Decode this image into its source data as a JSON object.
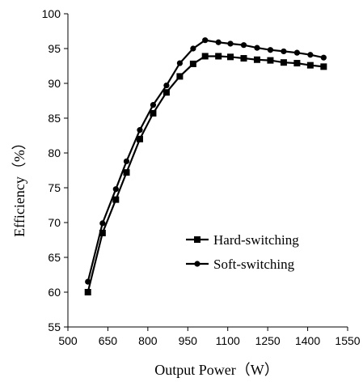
{
  "chart_data": {
    "type": "line",
    "xlabel": "Output Power（W）",
    "ylabel": "Efficiency（%）",
    "xlim": [
      500,
      1550
    ],
    "ylim": [
      55,
      100
    ],
    "x_ticks": [
      500,
      650,
      800,
      950,
      1100,
      1250,
      1400,
      1550
    ],
    "y_ticks": [
      55,
      60,
      65,
      70,
      75,
      80,
      85,
      90,
      95,
      100
    ],
    "grid": false,
    "legend_position": "lower-right",
    "series": [
      {
        "name": "Hard-switching",
        "marker": "square",
        "color": "#000000",
        "x": [
          575,
          630,
          680,
          720,
          770,
          820,
          870,
          920,
          970,
          1015,
          1065,
          1110,
          1160,
          1210,
          1260,
          1310,
          1360,
          1410,
          1460
        ],
        "y": [
          60.0,
          68.5,
          73.3,
          77.2,
          82.0,
          85.7,
          88.7,
          91.0,
          92.8,
          93.9,
          93.9,
          93.8,
          93.6,
          93.4,
          93.3,
          93.0,
          92.9,
          92.6,
          92.4
        ]
      },
      {
        "name": "Soft-switching",
        "marker": "circle",
        "color": "#000000",
        "x": [
          575,
          630,
          680,
          720,
          770,
          820,
          870,
          920,
          970,
          1015,
          1065,
          1110,
          1160,
          1210,
          1260,
          1310,
          1360,
          1410,
          1460
        ],
        "y": [
          61.5,
          69.9,
          74.8,
          78.8,
          83.3,
          86.9,
          89.7,
          92.9,
          95.0,
          96.2,
          95.9,
          95.7,
          95.5,
          95.1,
          94.8,
          94.6,
          94.4,
          94.1,
          93.7
        ]
      }
    ]
  }
}
